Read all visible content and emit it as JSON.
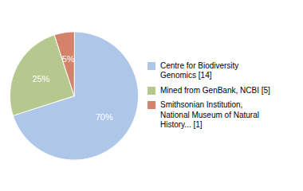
{
  "chart_data": {
    "type": "pie",
    "categories": [
      "Centre for Biodiversity\nGenomics [14]",
      "Mined from GenBank, NCBI [5]",
      "Smithsonian Institution,\nNational Museum of Natural\nHistory... [1]"
    ],
    "values": [
      70,
      25,
      5
    ],
    "value_labels": [
      "70%",
      "25%",
      "5%"
    ],
    "colors": [
      "#aec6e8",
      "#b5c98e",
      "#d4836a"
    ],
    "data_labels": true,
    "legend": "right"
  }
}
